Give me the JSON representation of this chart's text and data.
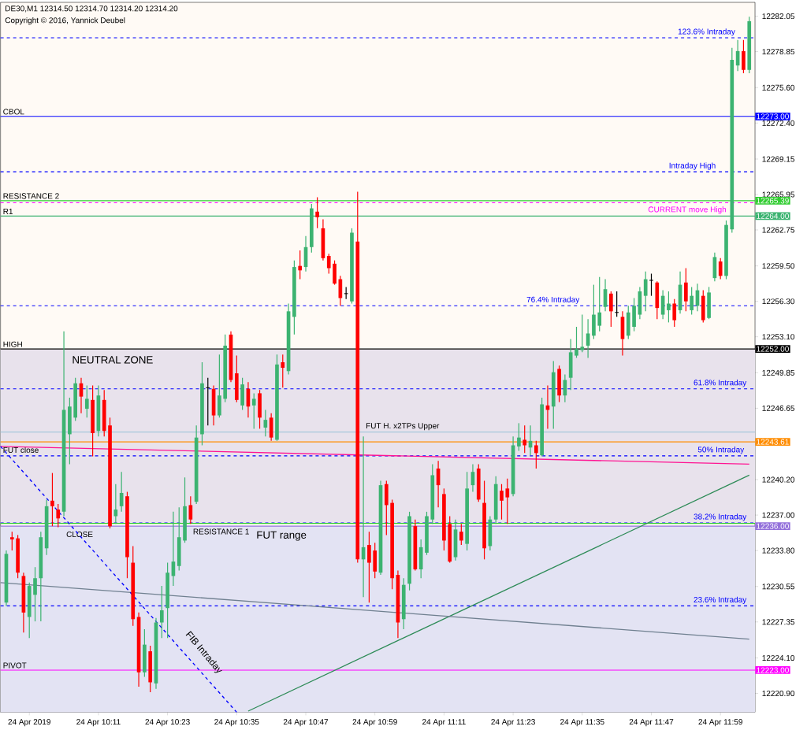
{
  "chart_data": {
    "type": "candlestick",
    "title": "DE30,M1  12314.50 12314.70 12314.20 12314.20",
    "annotations": [
      "Copyright © 2016, Yannick Deubel",
      "FIB Intraday",
      {
        "text": "12273.00",
        "x": "2019-04-24T12:05",
        "y": 12273.0
      },
      {
        "text": "12265.39",
        "x": "2019-04-24T12:05",
        "y": 12265.39
      },
      {
        "text": "12264.00",
        "x": "2019-04-24T12:05",
        "y": 12264.0
      },
      {
        "text": "12252.00",
        "x": "2019-04-24T12:05",
        "y": 12252.0
      },
      {
        "text": "12243.61",
        "x": "2019-04-24T12:05",
        "y": 12243.61
      },
      {
        "text": "12236.00",
        "x": "2019-04-24T12:05",
        "y": 12236.0
      },
      {
        "text": "12223.00",
        "x": "2019-04-24T12:05",
        "y": 12223.0
      }
    ],
    "xlim": [
      "2019-04-24T09:54",
      "2019-04-24T12:05"
    ],
    "ylim": [
      12219.2,
      12283.3
    ],
    "xticks": [
      {
        "value": "2019-04-24T09:59",
        "label": "24 Apr 2019"
      },
      {
        "value": "2019-04-24T10:11",
        "label": "24 Apr 10:11"
      },
      {
        "value": "2019-04-24T10:23",
        "label": "24 Apr 10:23"
      },
      {
        "value": "2019-04-24T10:35",
        "label": "24 Apr 10:35"
      },
      {
        "value": "2019-04-24T10:47",
        "label": "24 Apr 10:47"
      },
      {
        "value": "2019-04-24T10:59",
        "label": "24 Apr 10:59"
      },
      {
        "value": "2019-04-24T11:11",
        "label": "24 Apr 11:11"
      },
      {
        "value": "2019-04-24T11:23",
        "label": "24 Apr 11:23"
      },
      {
        "value": "2019-04-24T11:35",
        "label": "24 Apr 11:35"
      },
      {
        "value": "2019-04-24T11:47",
        "label": "24 Apr 11:47"
      },
      {
        "value": "2019-04-24T11:59",
        "label": "24 Apr 11:59"
      }
    ],
    "yticks": [
      {
        "value": 12282.05,
        "label": "12282.05"
      },
      {
        "value": 12278.85,
        "label": "12278.85"
      },
      {
        "value": 12275.6,
        "label": "12275.60"
      },
      {
        "value": 12272.4,
        "label": "12272.40"
      },
      {
        "value": 12269.15,
        "label": "12269.15"
      },
      {
        "value": 12265.95,
        "label": "12265.95"
      },
      {
        "value": 12262.75,
        "label": "12262.75"
      },
      {
        "value": 12259.5,
        "label": "12259.50"
      },
      {
        "value": 12256.3,
        "label": "12256.30"
      },
      {
        "value": 12253.1,
        "label": "12253.10"
      },
      {
        "value": 12249.85,
        "label": "12249.85"
      },
      {
        "value": 12246.65,
        "label": "12246.65"
      },
      {
        "value": 12243.4,
        "label": null
      },
      {
        "value": 12240.2,
        "label": "12240.20"
      },
      {
        "value": 12237.0,
        "label": "12237.00"
      },
      {
        "value": 12233.8,
        "label": "12233.80"
      },
      {
        "value": 12230.55,
        "label": "12230.55"
      },
      {
        "value": 12227.35,
        "label": "12227.35"
      },
      {
        "value": 12224.1,
        "label": "12224.10"
      },
      {
        "value": 12220.9,
        "label": "12220.90"
      }
    ],
    "bands": [
      {
        "axis": "y",
        "from": 12236.25,
        "to": 12252.0,
        "label": "NEUTRAL ZONE",
        "color": "#e8e2ec"
      },
      {
        "axis": "y",
        "from": 12219.2,
        "to": 12236.0,
        "label": "FUT range",
        "color": "#e3e3f3"
      }
    ],
    "ref_lines": [
      {
        "axis": "y",
        "value": 12280.1,
        "label": "123.6% Intraday",
        "color": "#0000ff",
        "line_style": "dashed"
      },
      {
        "axis": "y",
        "value": 12273.0,
        "label": "CBOL",
        "color": "#0000ff",
        "line_style": "solid"
      },
      {
        "axis": "y",
        "value": 12268.0,
        "label": "Intraday High",
        "color": "#0000ff",
        "line_style": "dashed"
      },
      {
        "axis": "y",
        "value": 12265.39,
        "label": "RESISTANCE 2",
        "color": "#32cd32",
        "line_style": "solid"
      },
      {
        "axis": "y",
        "value": 12265.2,
        "label": "CURRENT move  High",
        "color": "#ff00ff",
        "line_style": "dashed"
      },
      {
        "axis": "y",
        "value": 12264.0,
        "label": "R1",
        "color": "#3cb371",
        "line_style": "solid"
      },
      {
        "axis": "y",
        "value": 12255.9,
        "label": "76.4% Intraday",
        "color": "#0000ff",
        "line_style": "dashed"
      },
      {
        "axis": "y",
        "value": 12252.0,
        "label": "HIGH",
        "color": "#000000",
        "line_style": "solid"
      },
      {
        "axis": "y",
        "value": 12248.4,
        "label": "61.8% Intraday",
        "color": "#0000ff",
        "line_style": "dashed"
      },
      {
        "axis": "y",
        "value": 12244.5,
        "label": "FUT H. x2TPs Upper",
        "color": "#a6c8dc",
        "line_style": "solid"
      },
      {
        "axis": "y",
        "value": 12243.61,
        "label": "FUT close",
        "color": "#ff8c00",
        "line_style": "solid"
      },
      {
        "axis": "y",
        "value": 12242.35,
        "label": "50%  Intraday",
        "color": "#0000ff",
        "line_style": "dashed"
      },
      {
        "axis": "y",
        "value": 12236.3,
        "label": "38.2% Intraday",
        "color": "#0000ff",
        "line_style": "dashed"
      },
      {
        "axis": "y",
        "value": 12236.25,
        "label": "RESISTANCE 1",
        "color": "#32cd32",
        "line_style": "solid"
      },
      {
        "axis": "y",
        "value": 12236.0,
        "label": "CLOSE",
        "color": "#9370db",
        "line_style": "solid"
      },
      {
        "axis": "y",
        "value": 12228.8,
        "label": "23.6% Intraday",
        "color": "#0000ff",
        "line_style": "dashed"
      },
      {
        "axis": "y",
        "value": 12223.0,
        "label": "PIVOT",
        "color": "#ff00ff",
        "line_style": "solid"
      }
    ],
    "series": [
      {
        "type": "line",
        "color": "#2e8b57",
        "x": [
          "2019-04-24T10:37",
          "2019-04-24T12:04"
        ],
        "values": [
          12219.3,
          12240.6
        ]
      },
      {
        "type": "line",
        "color": "#708090",
        "x": [
          "2019-04-24T09:54",
          "2019-04-24T12:04"
        ],
        "values": [
          12230.9,
          12225.8
        ]
      },
      {
        "type": "line",
        "color": "#ff1493",
        "x": [
          "2019-04-24T09:54",
          "2019-04-24T12:04"
        ],
        "values": [
          12243.2,
          12241.6
        ]
      },
      {
        "type": "line",
        "color": "#0000ff",
        "line_style": "dashed",
        "x": [
          "2019-04-24T09:54",
          "2019-04-24T10:35"
        ],
        "values": [
          12243.2,
          12219.2
        ]
      }
    ],
    "x": [
      "2019-04-24T09:55",
      "2019-04-24T09:56",
      "2019-04-24T09:57",
      "2019-04-24T09:58",
      "2019-04-24T09:59",
      "2019-04-24T10:00",
      "2019-04-24T10:01",
      "2019-04-24T10:02",
      "2019-04-24T10:03",
      "2019-04-24T10:04",
      "2019-04-24T10:05",
      "2019-04-24T10:06",
      "2019-04-24T10:07",
      "2019-04-24T10:08",
      "2019-04-24T10:09",
      "2019-04-24T10:10",
      "2019-04-24T10:11",
      "2019-04-24T10:12",
      "2019-04-24T10:13",
      "2019-04-24T10:14",
      "2019-04-24T10:15",
      "2019-04-24T10:16",
      "2019-04-24T10:17",
      "2019-04-24T10:18",
      "2019-04-24T10:19",
      "2019-04-24T10:20",
      "2019-04-24T10:21",
      "2019-04-24T10:22",
      "2019-04-24T10:23",
      "2019-04-24T10:24",
      "2019-04-24T10:25",
      "2019-04-24T10:26",
      "2019-04-24T10:27",
      "2019-04-24T10:28",
      "2019-04-24T10:29",
      "2019-04-24T10:30",
      "2019-04-24T10:31",
      "2019-04-24T10:32",
      "2019-04-24T10:33",
      "2019-04-24T10:34",
      "2019-04-24T10:35",
      "2019-04-24T10:36",
      "2019-04-24T10:37",
      "2019-04-24T10:38",
      "2019-04-24T10:39",
      "2019-04-24T10:40",
      "2019-04-24T10:41",
      "2019-04-24T10:42",
      "2019-04-24T10:43",
      "2019-04-24T10:44",
      "2019-04-24T10:45",
      "2019-04-24T10:46",
      "2019-04-24T10:47",
      "2019-04-24T10:48",
      "2019-04-24T10:49",
      "2019-04-24T10:50",
      "2019-04-24T10:51",
      "2019-04-24T10:52",
      "2019-04-24T10:53",
      "2019-04-24T10:54",
      "2019-04-24T10:55",
      "2019-04-24T10:56",
      "2019-04-24T10:57",
      "2019-04-24T10:58",
      "2019-04-24T10:59",
      "2019-04-24T11:00",
      "2019-04-24T11:01",
      "2019-04-24T11:02",
      "2019-04-24T11:03",
      "2019-04-24T11:04",
      "2019-04-24T11:05",
      "2019-04-24T11:06",
      "2019-04-24T11:07",
      "2019-04-24T11:08",
      "2019-04-24T11:09",
      "2019-04-24T11:10",
      "2019-04-24T11:11",
      "2019-04-24T11:12",
      "2019-04-24T11:13",
      "2019-04-24T11:14",
      "2019-04-24T11:15",
      "2019-04-24T11:16",
      "2019-04-24T11:17",
      "2019-04-24T11:18",
      "2019-04-24T11:19",
      "2019-04-24T11:20",
      "2019-04-24T11:21",
      "2019-04-24T11:22",
      "2019-04-24T11:23",
      "2019-04-24T11:24",
      "2019-04-24T11:25",
      "2019-04-24T11:26",
      "2019-04-24T11:27",
      "2019-04-24T11:28",
      "2019-04-24T11:29",
      "2019-04-24T11:30",
      "2019-04-24T11:31",
      "2019-04-24T11:32",
      "2019-04-24T11:33",
      "2019-04-24T11:34",
      "2019-04-24T11:35",
      "2019-04-24T11:36",
      "2019-04-24T11:37",
      "2019-04-24T11:38",
      "2019-04-24T11:39",
      "2019-04-24T11:40",
      "2019-04-24T11:41",
      "2019-04-24T11:42",
      "2019-04-24T11:43",
      "2019-04-24T11:44",
      "2019-04-24T11:45",
      "2019-04-24T11:46",
      "2019-04-24T11:47",
      "2019-04-24T11:48",
      "2019-04-24T11:49",
      "2019-04-24T11:50",
      "2019-04-24T11:51",
      "2019-04-24T11:52",
      "2019-04-24T11:53",
      "2019-04-24T11:54",
      "2019-04-24T11:55",
      "2019-04-24T11:56",
      "2019-04-24T11:57",
      "2019-04-24T11:58",
      "2019-04-24T11:59",
      "2019-04-24T12:00",
      "2019-04-24T12:01",
      "2019-04-24T12:02",
      "2019-04-24T12:03",
      "2019-04-24T12:04"
    ],
    "ohlc": [
      [
        12229.1,
        12233.8,
        12228.8,
        12233.5
      ],
      [
        12235.0,
        12235.5,
        12233.8,
        12234.8
      ],
      [
        12234.9,
        12235.2,
        12231.3,
        12231.8
      ],
      [
        12231.5,
        12231.8,
        12226.4,
        12228.2
      ],
      [
        12227.8,
        12230.9,
        12225.9,
        12230.6
      ],
      [
        12229.8,
        12232.3,
        12227.4,
        12231.3
      ],
      [
        12231.3,
        12235.5,
        12227.4,
        12235.0
      ],
      [
        12234.0,
        12238.4,
        12233.4,
        12237.8
      ],
      [
        12238.3,
        12240.8,
        12236.0,
        12237.8
      ],
      [
        12237.5,
        12238.0,
        12235.9,
        12236.7
      ],
      [
        12237.3,
        12253.6,
        12236.9,
        12246.5
      ],
      [
        12244.3,
        12247.6,
        12241.6,
        12246.8
      ],
      [
        12245.8,
        12249.4,
        12245.5,
        12248.9
      ],
      [
        12248.9,
        12249.4,
        12246.2,
        12247.7
      ],
      [
        12246.6,
        12248.7,
        12245.8,
        12247.5
      ],
      [
        12247.4,
        12248.7,
        12242.3,
        12244.4
      ],
      [
        12244.6,
        12248.7,
        12244.1,
        12247.8
      ],
      [
        12247.4,
        12248.3,
        12244.1,
        12244.6
      ],
      [
        12245.1,
        12245.8,
        12235.8,
        12236.0
      ],
      [
        12236.9,
        12239.8,
        12236.2,
        12237.5
      ],
      [
        12237.8,
        12240.9,
        12237.3,
        12239.0
      ],
      [
        12238.7,
        12239.1,
        12231.3,
        12233.2
      ],
      [
        12232.7,
        12234.2,
        12227.0,
        12227.6
      ],
      [
        12227.8,
        12228.2,
        12221.5,
        12222.8
      ],
      [
        12222.8,
        12226.7,
        12222.4,
        12225.3
      ],
      [
        12224.7,
        12225.2,
        12221.0,
        12221.9
      ],
      [
        12221.8,
        12227.7,
        12221.3,
        12227.3
      ],
      [
        12227.3,
        12230.6,
        12225.9,
        12228.4
      ],
      [
        12228.6,
        12232.7,
        12225.9,
        12231.8
      ],
      [
        12231.5,
        12237.3,
        12230.6,
        12232.8
      ],
      [
        12232.4,
        12237.7,
        12232.0,
        12235.0
      ],
      [
        12234.7,
        12240.4,
        12234.5,
        12237.8
      ],
      [
        12237.9,
        12238.7,
        12236.2,
        12236.6
      ],
      [
        12238.2,
        12245.1,
        12238.0,
        12244.0
      ],
      [
        12244.3,
        12250.8,
        12243.3,
        12248.9
      ],
      [
        12248.5,
        12249.4,
        12245.1,
        12248.5
      ],
      [
        12248.4,
        12248.7,
        12245.1,
        12246.0
      ],
      [
        12246.0,
        12251.5,
        12245.8,
        12247.8
      ],
      [
        12247.5,
        12253.3,
        12247.2,
        12252.3
      ],
      [
        12253.3,
        12253.6,
        12249.0,
        12249.2
      ],
      [
        12249.8,
        12251.4,
        12247.2,
        12247.4
      ],
      [
        12246.9,
        12249.4,
        12246.5,
        12248.8
      ],
      [
        12248.4,
        12249.0,
        12245.8,
        12246.8
      ],
      [
        12246.9,
        12248.0,
        12244.8,
        12247.5
      ],
      [
        12248.0,
        12248.3,
        12244.8,
        12245.8
      ],
      [
        12244.9,
        12246.5,
        12244.1,
        12245.6
      ],
      [
        12245.8,
        12246.2,
        12243.7,
        12244.0
      ],
      [
        12243.8,
        12251.5,
        12243.7,
        12250.6
      ],
      [
        12250.8,
        12251.5,
        12248.5,
        12250.3
      ],
      [
        12250.0,
        12256.1,
        12249.7,
        12255.4
      ],
      [
        12254.9,
        12260.0,
        12253.3,
        12259.4
      ],
      [
        12259.5,
        12260.9,
        12258.3,
        12259.1
      ],
      [
        12259.4,
        12262.2,
        12259.0,
        12261.2
      ],
      [
        12261.2,
        12265.1,
        12260.7,
        12264.7
      ],
      [
        12264.4,
        12265.7,
        12262.9,
        12263.9
      ],
      [
        12262.9,
        12263.7,
        12260.0,
        12260.2
      ],
      [
        12260.4,
        12260.6,
        12258.8,
        12259.3
      ],
      [
        12259.7,
        12260.0,
        12257.8,
        12257.9
      ],
      [
        12258.3,
        12258.6,
        12255.9,
        12256.6
      ],
      [
        12257.0,
        12257.6,
        12256.5,
        12257.0
      ],
      [
        12256.3,
        12262.9,
        12256.1,
        12262.5
      ],
      [
        12261.7,
        12266.2,
        12232.7,
        12233.0
      ],
      [
        12233.0,
        12244.1,
        12229.6,
        12234.1
      ],
      [
        12234.3,
        12235.5,
        12229.1,
        12232.7
      ],
      [
        12233.8,
        12234.5,
        12231.3,
        12231.9
      ],
      [
        12231.8,
        12240.1,
        12231.6,
        12239.7
      ],
      [
        12239.8,
        12240.1,
        12235.2,
        12237.9
      ],
      [
        12238.1,
        12238.4,
        12230.3,
        12231.3
      ],
      [
        12231.6,
        12232.0,
        12225.9,
        12227.3
      ],
      [
        12227.6,
        12231.3,
        12226.7,
        12230.7
      ],
      [
        12230.8,
        12237.3,
        12230.2,
        12236.9
      ],
      [
        12236.0,
        12236.6,
        12232.0,
        12232.1
      ],
      [
        12232.1,
        12234.8,
        12231.3,
        12234.1
      ],
      [
        12233.6,
        12237.3,
        12233.4,
        12236.9
      ],
      [
        12236.6,
        12241.6,
        12236.2,
        12240.6
      ],
      [
        12241.2,
        12241.9,
        12237.7,
        12239.7
      ],
      [
        12238.9,
        12239.4,
        12233.8,
        12234.7
      ],
      [
        12236.2,
        12236.9,
        12232.7,
        12232.8
      ],
      [
        12233.2,
        12236.6,
        12232.9,
        12235.7
      ],
      [
        12235.5,
        12236.2,
        12234.3,
        12234.7
      ],
      [
        12234.4,
        12240.9,
        12233.8,
        12239.4
      ],
      [
        12239.7,
        12241.6,
        12239.1,
        12240.9
      ],
      [
        12241.2,
        12241.6,
        12238.2,
        12238.4
      ],
      [
        12238.1,
        12240.1,
        12233.0,
        12234.0
      ],
      [
        12234.2,
        12236.9,
        12233.8,
        12236.6
      ],
      [
        12236.6,
        12240.5,
        12236.2,
        12239.8
      ],
      [
        12239.2,
        12239.8,
        12236.6,
        12238.3
      ],
      [
        12239.4,
        12240.3,
        12236.2,
        12238.6
      ],
      [
        12238.9,
        12244.1,
        12238.7,
        12243.3
      ],
      [
        12243.2,
        12245.3,
        12242.8,
        12244.0
      ],
      [
        12243.8,
        12245.1,
        12242.6,
        12243.3
      ],
      [
        12243.1,
        12245.1,
        12242.4,
        12243.7
      ],
      [
        12243.3,
        12243.7,
        12241.2,
        12242.6
      ],
      [
        12242.4,
        12247.6,
        12242.3,
        12247.0
      ],
      [
        12246.9,
        12248.7,
        12244.8,
        12246.5
      ],
      [
        12246.8,
        12250.9,
        12244.8,
        12249.9
      ],
      [
        12250.2,
        12250.5,
        12247.2,
        12247.8
      ],
      [
        12247.8,
        12249.7,
        12247.2,
        12249.2
      ],
      [
        12249.4,
        12252.9,
        12248.3,
        12251.7
      ],
      [
        12251.4,
        12254.0,
        12251.2,
        12252.0
      ],
      [
        12251.9,
        12255.1,
        12251.7,
        12252.2
      ],
      [
        12252.3,
        12254.7,
        12251.2,
        12253.4
      ],
      [
        12253.2,
        12257.8,
        12252.9,
        12255.1
      ],
      [
        12254.1,
        12258.5,
        12253.6,
        12255.3
      ],
      [
        12255.8,
        12258.3,
        12255.4,
        12257.4
      ],
      [
        12257.0,
        12257.2,
        12254.0,
        12255.4
      ],
      [
        12255.3,
        12257.2,
        12254.9,
        12255.3
      ],
      [
        12254.9,
        12255.4,
        12251.4,
        12252.9
      ],
      [
        12253.2,
        12255.9,
        12252.9,
        12255.3
      ],
      [
        12254.0,
        12256.6,
        12253.6,
        12255.9
      ],
      [
        12255.1,
        12257.6,
        12254.7,
        12257.2
      ],
      [
        12256.8,
        12259.0,
        12255.4,
        12258.3
      ],
      [
        12258.2,
        12258.8,
        12256.8,
        12258.2
      ],
      [
        12258.0,
        12258.1,
        12254.7,
        12255.7
      ],
      [
        12255.1,
        12257.3,
        12254.7,
        12256.8
      ],
      [
        12255.5,
        12257.2,
        12254.4,
        12256.1
      ],
      [
        12256.1,
        12256.5,
        12254.0,
        12254.6
      ],
      [
        12255.5,
        12259.0,
        12255.2,
        12257.8
      ],
      [
        12258.0,
        12259.3,
        12255.4,
        12256.3
      ],
      [
        12255.5,
        12257.6,
        12255.1,
        12256.8
      ],
      [
        12255.9,
        12257.9,
        12255.4,
        12257.3
      ],
      [
        12256.8,
        12257.3,
        12254.4,
        12254.6
      ],
      [
        12254.8,
        12257.6,
        12254.7,
        12257.1
      ],
      [
        12258.4,
        12260.7,
        12258.1,
        12260.3
      ],
      [
        12259.9,
        12260.2,
        12258.3,
        12258.6
      ],
      [
        12258.6,
        12263.6,
        12258.3,
        12263.2
      ],
      [
        12262.8,
        12279.2,
        12262.5,
        12278.1
      ],
      [
        12277.6,
        12279.9,
        12277.1,
        12278.9
      ],
      [
        12278.9,
        12279.9,
        12276.9,
        12277.2
      ],
      [
        12277.2,
        12282.0,
        12276.9,
        12281.6
      ]
    ]
  }
}
